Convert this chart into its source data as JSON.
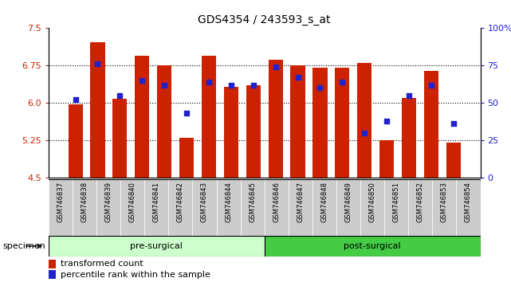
{
  "title": "GDS4354 / 243593_s_at",
  "samples": [
    "GSM746837",
    "GSM746838",
    "GSM746839",
    "GSM746840",
    "GSM746841",
    "GSM746842",
    "GSM746843",
    "GSM746844",
    "GSM746845",
    "GSM746846",
    "GSM746847",
    "GSM746848",
    "GSM746849",
    "GSM746850",
    "GSM746851",
    "GSM746852",
    "GSM746853",
    "GSM746854"
  ],
  "bar_values": [
    5.97,
    7.22,
    6.08,
    6.95,
    6.75,
    5.3,
    6.95,
    6.32,
    6.35,
    6.87,
    6.75,
    6.7,
    6.7,
    6.8,
    5.25,
    6.1,
    6.65,
    5.2
  ],
  "percentile_values": [
    52,
    76,
    55,
    65,
    62,
    43,
    64,
    62,
    62,
    74,
    67,
    60,
    64,
    30,
    38,
    55,
    62,
    36
  ],
  "pre_surgical_count": 9,
  "ylim_left": [
    4.5,
    7.5
  ],
  "ylim_right": [
    0,
    100
  ],
  "yticks_left": [
    4.5,
    5.25,
    6.0,
    6.75,
    7.5
  ],
  "yticks_right": [
    0,
    25,
    50,
    75,
    100
  ],
  "hlines": [
    5.25,
    6.0,
    6.75
  ],
  "bar_color": "#cc2200",
  "dot_color": "#2222cc",
  "pre_surgical_bg": "#ccffcc",
  "post_surgical_bg": "#44cc44",
  "tick_bg": "#cccccc",
  "legend_bar_label": "transformed count",
  "legend_dot_label": "percentile rank within the sample",
  "specimen_label": "specimen"
}
